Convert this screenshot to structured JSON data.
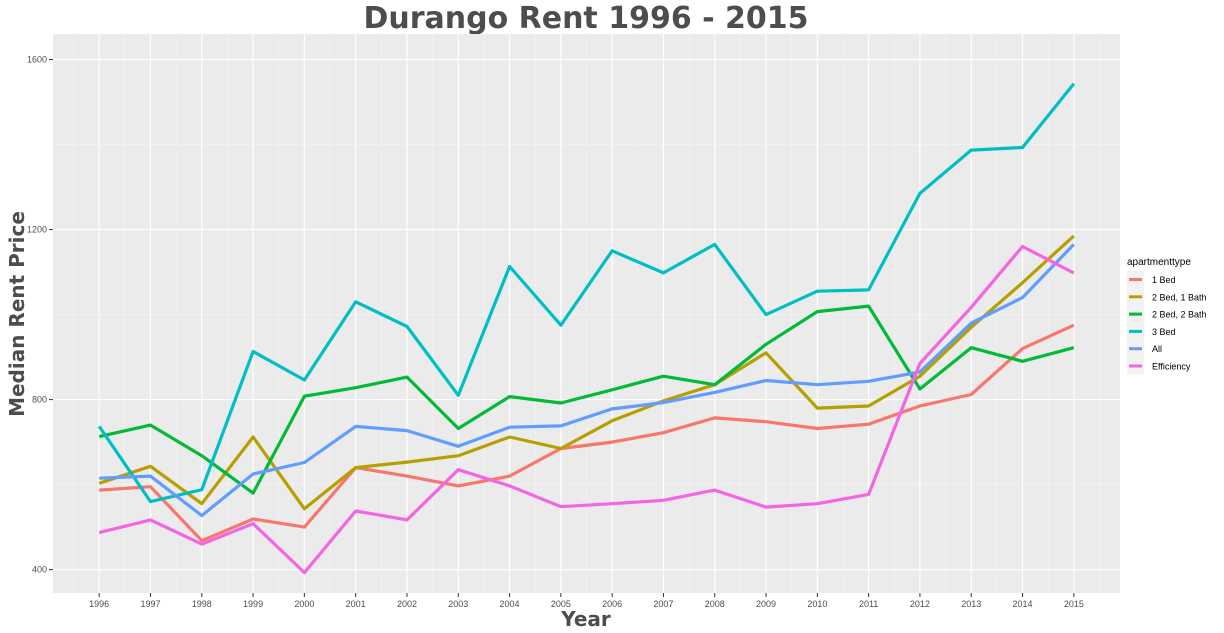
{
  "chart_data": {
    "type": "line",
    "title": "Durango Rent 1996 - 2015",
    "xlabel": "Year",
    "ylabel": "Median Rent Price",
    "x": [
      1996,
      1997,
      1998,
      1999,
      2000,
      2001,
      2002,
      2003,
      2004,
      2005,
      2006,
      2007,
      2008,
      2009,
      2010,
      2011,
      2012,
      2013,
      2014,
      2015
    ],
    "x_tick_labels": [
      "1996",
      "1997",
      "1998",
      "1999",
      "2000",
      "2001",
      "2002",
      "2003",
      "2004",
      "2005",
      "2006",
      "2007",
      "2008",
      "2009",
      "2010",
      "2011",
      "2012",
      "2013",
      "2014",
      "2015"
    ],
    "ylim": [
      345,
      1660
    ],
    "y_ticks": [
      400,
      800,
      1200,
      1600
    ],
    "y_tick_labels": [
      "400",
      "800",
      "1200",
      "1600"
    ],
    "grid": true,
    "legend_title": "apartmenttype",
    "legend_position": "right",
    "series": [
      {
        "name": "1 Bed",
        "color": "#F8766D",
        "values": [
          587,
          595,
          468,
          519,
          500,
          640,
          620,
          597,
          620,
          685,
          700,
          722,
          757,
          748,
          732,
          742,
          785,
          812,
          920,
          975
        ]
      },
      {
        "name": "2 Bed, 1 Bath",
        "color": "#B79F00",
        "values": [
          603,
          643,
          555,
          712,
          543,
          640,
          653,
          668,
          712,
          685,
          750,
          797,
          835,
          910,
          780,
          785,
          855,
          970,
          1075,
          1185
        ]
      },
      {
        "name": "2 Bed, 2 Bath",
        "color": "#00BA38",
        "values": [
          713,
          740,
          668,
          580,
          808,
          828,
          853,
          732,
          807,
          792,
          823,
          855,
          835,
          930,
          1007,
          1020,
          825,
          922,
          890,
          922
        ]
      },
      {
        "name": "3 Bed",
        "color": "#00BFC4",
        "values": [
          737,
          560,
          588,
          913,
          846,
          1030,
          972,
          810,
          1113,
          975,
          1150,
          1098,
          1165,
          1000,
          1055,
          1058,
          1285,
          1387,
          1393,
          1543
        ]
      },
      {
        "name": "All",
        "color": "#619CFF",
        "values": [
          615,
          620,
          527,
          625,
          652,
          737,
          727,
          690,
          735,
          738,
          778,
          793,
          817,
          845,
          835,
          843,
          865,
          980,
          1040,
          1165
        ]
      },
      {
        "name": "Efficiency",
        "color": "#F564E3",
        "values": [
          487,
          517,
          460,
          508,
          393,
          538,
          517,
          635,
          597,
          548,
          555,
          563,
          587,
          547,
          555,
          577,
          885,
          1017,
          1160,
          1098
        ]
      }
    ]
  }
}
